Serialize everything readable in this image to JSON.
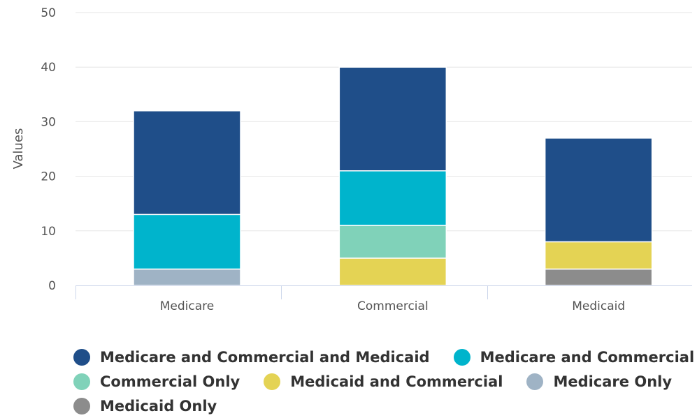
{
  "chart_data": {
    "type": "bar",
    "stacked": true,
    "ylabel": "Values",
    "ylim": [
      0,
      50
    ],
    "yticks": [
      0,
      10,
      20,
      30,
      40,
      50
    ],
    "categories": [
      "Medicare",
      "Commercial",
      "Medicaid"
    ],
    "grid": true,
    "legend_position": "bottom",
    "series": [
      {
        "name": "Medicaid Only",
        "color": "#8c8c8c",
        "values": [
          0,
          0,
          3
        ]
      },
      {
        "name": "Medicare Only",
        "color": "#9fb3c5",
        "values": [
          3,
          0,
          0
        ]
      },
      {
        "name": "Medicaid and Commercial",
        "color": "#e4d354",
        "values": [
          0,
          5,
          5
        ]
      },
      {
        "name": "Commercial Only",
        "color": "#80d2b9",
        "values": [
          0,
          6,
          0
        ]
      },
      {
        "name": "Medicare and Commercial",
        "color": "#00b4cc",
        "values": [
          10,
          10,
          0
        ]
      },
      {
        "name": "Medicare and Commercial and Medicaid",
        "color": "#1f4e89",
        "values": [
          19,
          19,
          19
        ]
      }
    ],
    "legend_order": [
      "Medicare and Commercial and Medicaid",
      "Medicare and Commercial",
      "Commercial Only",
      "Medicaid and Commercial",
      "Medicare Only",
      "Medicaid Only"
    ]
  }
}
